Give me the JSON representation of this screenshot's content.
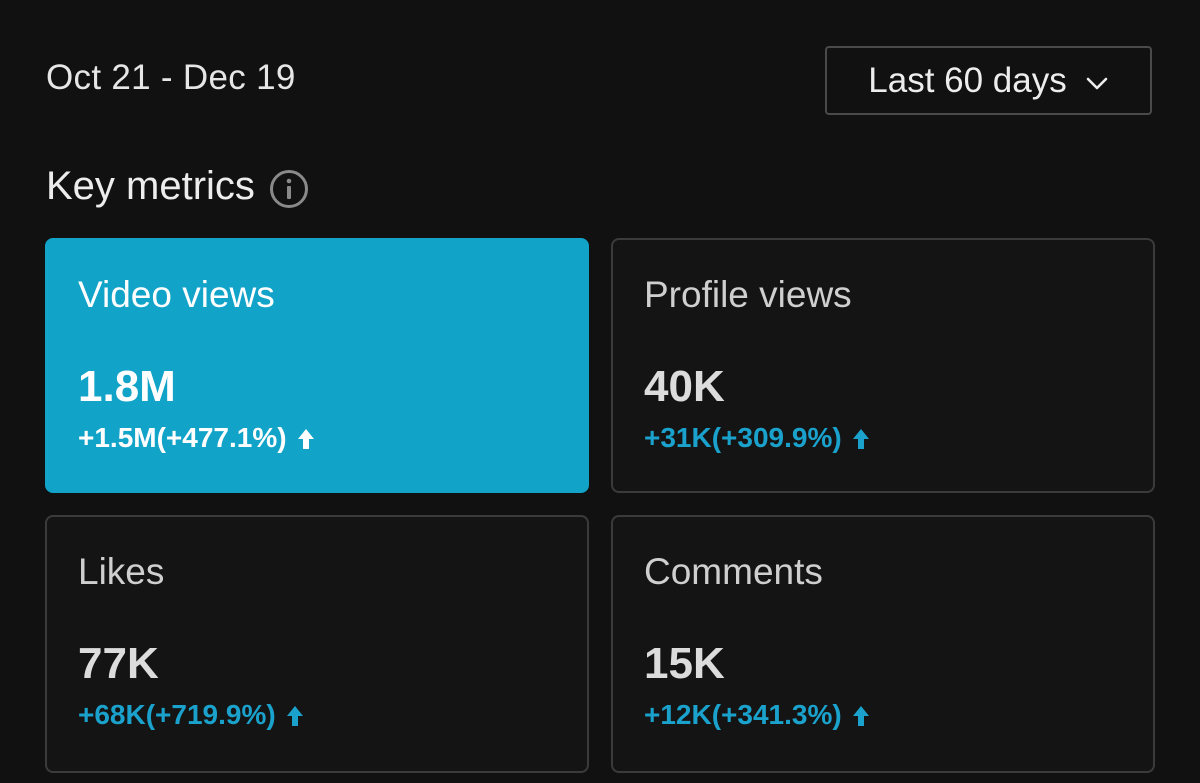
{
  "header": {
    "date_range": "Oct 21 - Dec 19",
    "period_select": {
      "selected": "Last 60 days",
      "icon": "chevron-down-icon"
    }
  },
  "section": {
    "title": "Key metrics",
    "info_icon": "info-icon"
  },
  "metrics": [
    {
      "label": "Video views",
      "value": "1.8M",
      "delta": "+1.5M(+477.1%)",
      "trend": "up",
      "selected": true
    },
    {
      "label": "Profile views",
      "value": "40K",
      "delta": "+31K(+309.9%)",
      "trend": "up",
      "selected": false
    },
    {
      "label": "Likes",
      "value": "77K",
      "delta": "+68K(+719.9%)",
      "trend": "up",
      "selected": false
    },
    {
      "label": "Comments",
      "value": "15K",
      "delta": "+12K(+341.3%)",
      "trend": "up",
      "selected": false
    }
  ],
  "colors": {
    "background": "#111111",
    "accent": "#11a3c8",
    "delta_positive": "#1aa2cc",
    "card_border": "#3b3b3b"
  }
}
